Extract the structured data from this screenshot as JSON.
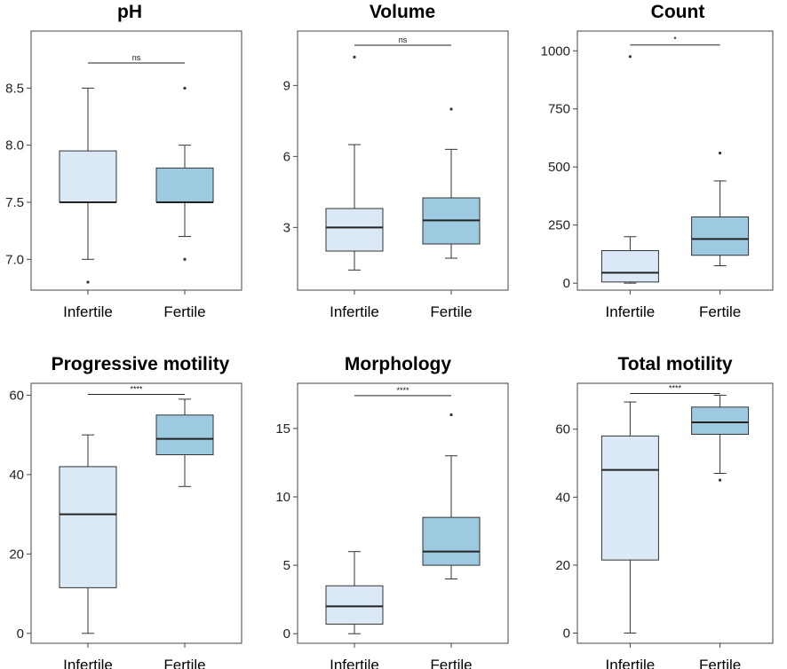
{
  "chart_data": [
    {
      "type": "box",
      "title": "pH",
      "categories": [
        "Infertile",
        "Fertile"
      ],
      "ylim": [
        6.73,
        9.0
      ],
      "yticks": [
        7.0,
        7.5,
        8.0,
        8.5
      ],
      "ytick_labels": [
        "7.0",
        "7.5",
        "8.0",
        "8.5"
      ],
      "series": [
        {
          "name": "Infertile",
          "min": 7.0,
          "q1": 7.5,
          "median": 7.5,
          "q3": 7.95,
          "max": 8.5,
          "outliers": [
            6.8
          ],
          "color": "#dbe9f6"
        },
        {
          "name": "Fertile",
          "min": 7.2,
          "q1": 7.5,
          "median": 7.5,
          "q3": 7.8,
          "max": 8.0,
          "outliers": [
            7.0,
            8.5
          ],
          "color": "#9ecae1"
        }
      ],
      "significance": {
        "label": "ns",
        "value": 8.72
      }
    },
    {
      "type": "box",
      "title": "Volume",
      "categories": [
        "Infertile",
        "Fertile"
      ],
      "ylim": [
        0.35,
        11.3
      ],
      "yticks": [
        3,
        6,
        9
      ],
      "ytick_labels": [
        "3",
        "6",
        "9"
      ],
      "series": [
        {
          "name": "Infertile",
          "min": 1.2,
          "q1": 2.0,
          "median": 3.0,
          "q3": 3.8,
          "max": 6.5,
          "outliers": [
            10.2
          ],
          "color": "#dbe9f6"
        },
        {
          "name": "Fertile",
          "min": 1.7,
          "q1": 2.3,
          "median": 3.3,
          "q3": 4.25,
          "max": 6.3,
          "outliers": [
            8.0
          ],
          "color": "#9ecae1"
        }
      ],
      "significance": {
        "label": "ns",
        "value": 10.7
      }
    },
    {
      "type": "box",
      "title": "Count",
      "categories": [
        "Infertile",
        "Fertile"
      ],
      "ylim": [
        -30,
        1085
      ],
      "yticks": [
        0,
        250,
        500,
        750,
        1000
      ],
      "ytick_labels": [
        "0",
        "250",
        "500",
        "750",
        "1000"
      ],
      "series": [
        {
          "name": "Infertile",
          "min": 0,
          "q1": 5,
          "median": 45,
          "q3": 140,
          "max": 200,
          "outliers": [
            975
          ],
          "color": "#dbe9f6"
        },
        {
          "name": "Fertile",
          "min": 75,
          "q1": 120,
          "median": 190,
          "q3": 285,
          "max": 440,
          "outliers": [
            560
          ],
          "color": "#9ecae1"
        }
      ],
      "significance": {
        "label": "*",
        "value": 1025
      }
    },
    {
      "type": "box",
      "title": "Progressive motility",
      "categories": [
        "Infertile",
        "Fertile"
      ],
      "ylim": [
        -2.5,
        63
      ],
      "yticks": [
        0,
        20,
        40,
        60
      ],
      "ytick_labels": [
        "0",
        "20",
        "40",
        "60"
      ],
      "series": [
        {
          "name": "Infertile",
          "min": 0,
          "q1": 11.5,
          "median": 30,
          "q3": 42,
          "max": 50,
          "outliers": [],
          "color": "#dbe9f6"
        },
        {
          "name": "Fertile",
          "min": 37,
          "q1": 45,
          "median": 49,
          "q3": 55,
          "max": 59,
          "outliers": [],
          "color": "#9ecae1"
        }
      ],
      "significance": {
        "label": "****",
        "value": 60.2
      }
    },
    {
      "type": "box",
      "title": "Morphology",
      "categories": [
        "Infertile",
        "Fertile"
      ],
      "ylim": [
        -0.7,
        18.3
      ],
      "yticks": [
        0,
        5,
        10,
        15
      ],
      "ytick_labels": [
        "0",
        "5",
        "10",
        "15"
      ],
      "series": [
        {
          "name": "Infertile",
          "min": 0,
          "q1": 0.7,
          "median": 2,
          "q3": 3.5,
          "max": 6,
          "outliers": [],
          "color": "#dbe9f6"
        },
        {
          "name": "Fertile",
          "min": 4,
          "q1": 5,
          "median": 6,
          "q3": 8.5,
          "max": 13,
          "outliers": [
            16
          ],
          "color": "#9ecae1"
        }
      ],
      "significance": {
        "label": "****",
        "value": 17.4
      }
    },
    {
      "type": "box",
      "title": "Total motility",
      "categories": [
        "Infertile",
        "Fertile"
      ],
      "ylim": [
        -3,
        73.5
      ],
      "yticks": [
        0,
        20,
        40,
        60
      ],
      "ytick_labels": [
        "0",
        "20",
        "40",
        "60"
      ],
      "series": [
        {
          "name": "Infertile",
          "min": 0,
          "q1": 21.5,
          "median": 48,
          "q3": 58,
          "max": 68,
          "outliers": [],
          "color": "#dbe9f6"
        },
        {
          "name": "Fertile",
          "min": 47,
          "q1": 58.5,
          "median": 62,
          "q3": 66.5,
          "max": 70,
          "outliers": [
            45
          ],
          "color": "#9ecae1"
        }
      ],
      "significance": {
        "label": "****",
        "value": 70.5
      }
    }
  ]
}
